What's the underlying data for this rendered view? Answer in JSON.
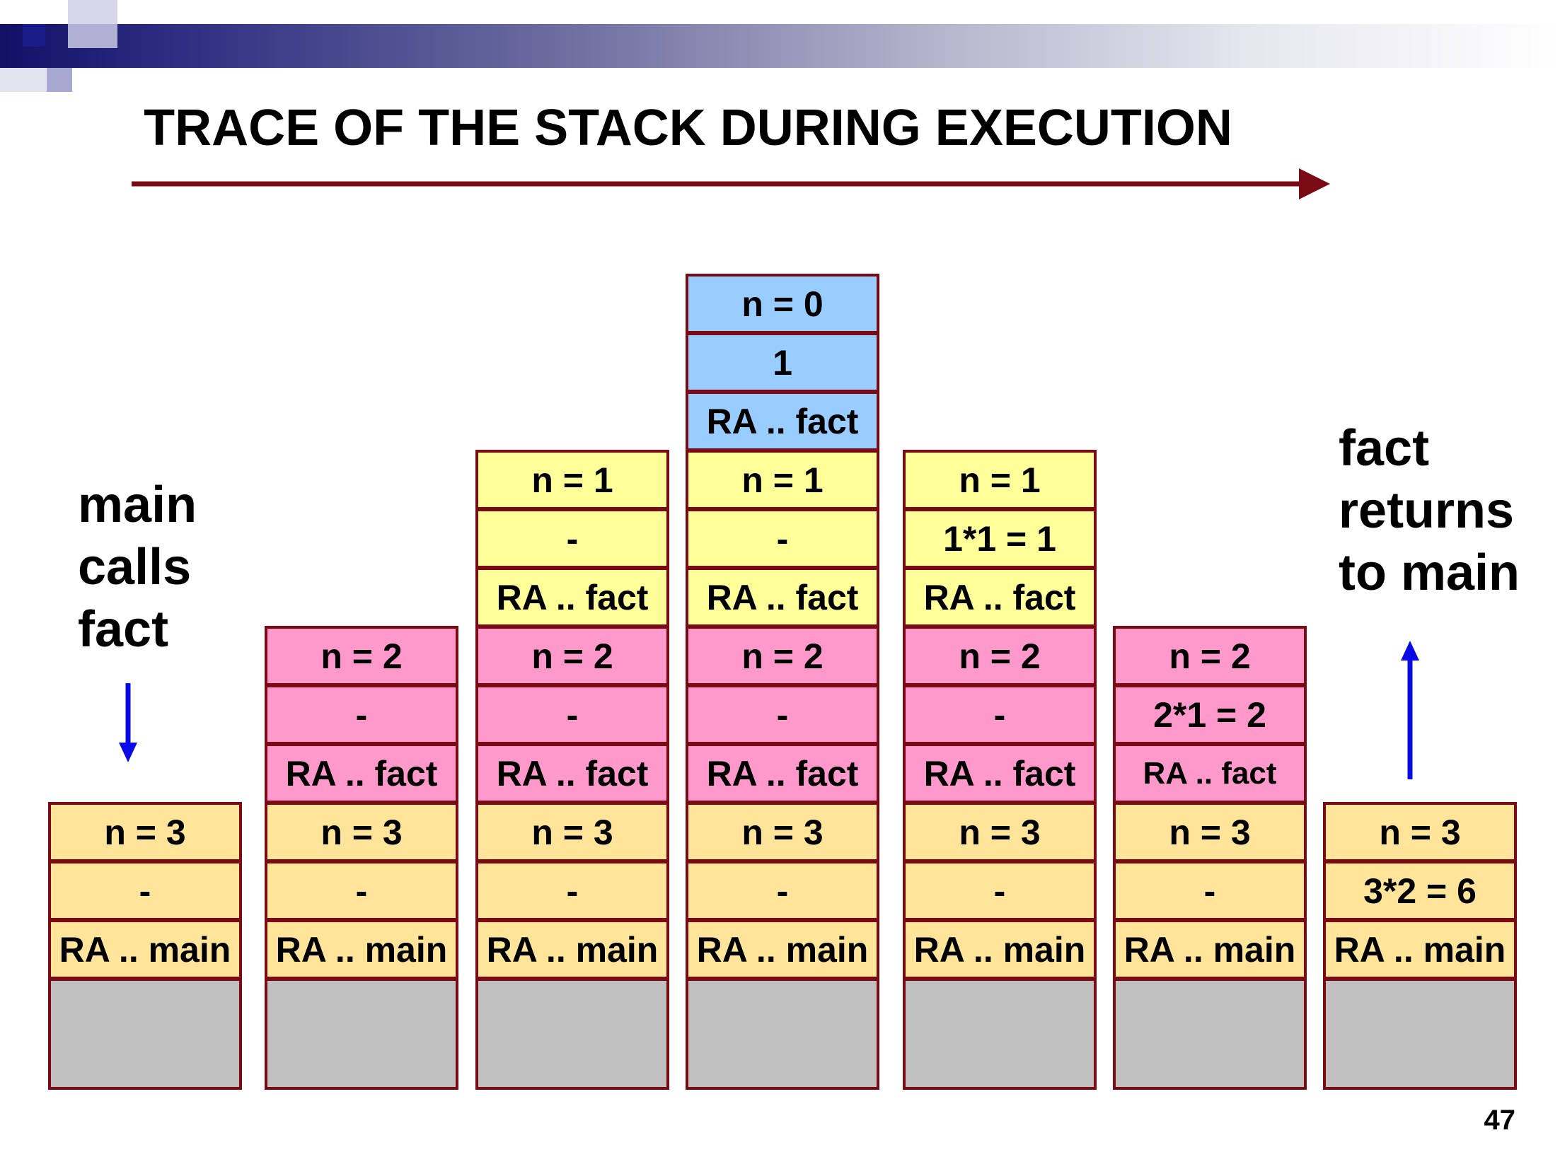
{
  "title": "TRACE OF THE STACK DURING EXECUTION",
  "left_label": [
    "main",
    "calls",
    "fact"
  ],
  "right_label": [
    "fact",
    "returns",
    "to main"
  ],
  "page_number": "47",
  "colors": {
    "yellow": "#ffe49a",
    "pink": "#ff99cc",
    "lemon": "#ffff99",
    "blue": "#99ccff",
    "base": "#c0c0c0",
    "border": "#7a0a14",
    "timeline_arrow": "#7a0a14",
    "call_arrow": "#0a0ae6"
  },
  "stack_columns": [
    {
      "cells": [
        {
          "text": "n = 3",
          "color": "yellow"
        },
        {
          "text": "-",
          "color": "yellow"
        },
        {
          "text": "RA .. main",
          "color": "yellow"
        }
      ]
    },
    {
      "cells": [
        {
          "text": "n = 2",
          "color": "pink"
        },
        {
          "text": "-",
          "color": "pink"
        },
        {
          "text": "RA .. fact",
          "color": "pink"
        },
        {
          "text": "n = 3",
          "color": "yellow"
        },
        {
          "text": "-",
          "color": "yellow"
        },
        {
          "text": "RA .. main",
          "color": "yellow"
        }
      ]
    },
    {
      "cells": [
        {
          "text": "n = 1",
          "color": "lemon"
        },
        {
          "text": "-",
          "color": "lemon"
        },
        {
          "text": "RA .. fact",
          "color": "lemon"
        },
        {
          "text": "n = 2",
          "color": "pink"
        },
        {
          "text": "-",
          "color": "pink"
        },
        {
          "text": "RA .. fact",
          "color": "pink"
        },
        {
          "text": "n = 3",
          "color": "yellow"
        },
        {
          "text": "-",
          "color": "yellow"
        },
        {
          "text": "RA .. main",
          "color": "yellow"
        }
      ]
    },
    {
      "cells": [
        {
          "text": "n = 0",
          "color": "blue"
        },
        {
          "text": "1",
          "color": "blue"
        },
        {
          "text": "RA .. fact",
          "color": "blue"
        },
        {
          "text": "n = 1",
          "color": "lemon"
        },
        {
          "text": "-",
          "color": "lemon"
        },
        {
          "text": "RA .. fact",
          "color": "lemon"
        },
        {
          "text": "n = 2",
          "color": "pink"
        },
        {
          "text": "-",
          "color": "pink"
        },
        {
          "text": "RA .. fact",
          "color": "pink"
        },
        {
          "text": "n = 3",
          "color": "yellow"
        },
        {
          "text": "-",
          "color": "yellow"
        },
        {
          "text": "RA .. main",
          "color": "yellow"
        }
      ]
    },
    {
      "cells": [
        {
          "text": "n = 1",
          "color": "lemon"
        },
        {
          "text": "1*1 = 1",
          "color": "lemon"
        },
        {
          "text": "RA .. fact",
          "color": "lemon"
        },
        {
          "text": "n = 2",
          "color": "pink"
        },
        {
          "text": "-",
          "color": "pink"
        },
        {
          "text": "RA .. fact",
          "color": "pink"
        },
        {
          "text": "n = 3",
          "color": "yellow"
        },
        {
          "text": "-",
          "color": "yellow"
        },
        {
          "text": "RA .. main",
          "color": "yellow"
        }
      ]
    },
    {
      "cells": [
        {
          "text": "n = 2",
          "color": "pink"
        },
        {
          "text": "2*1 = 2",
          "color": "pink"
        },
        {
          "text": "RA .. fact",
          "color": "pink",
          "small": true
        },
        {
          "text": "n = 3",
          "color": "yellow"
        },
        {
          "text": "-",
          "color": "yellow"
        },
        {
          "text": "RA .. main",
          "color": "yellow"
        }
      ]
    },
    {
      "cells": [
        {
          "text": "n = 3",
          "color": "yellow"
        },
        {
          "text": "3*2 = 6",
          "color": "yellow"
        },
        {
          "text": "RA .. main",
          "color": "yellow"
        }
      ]
    }
  ]
}
